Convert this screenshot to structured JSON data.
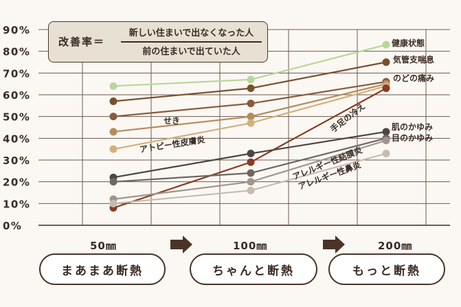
{
  "formula": {
    "label": "改善率＝",
    "numerator": "新しい住まいで出なくなった人",
    "denominator": "前の住まいで出ていた人"
  },
  "stages": [
    {
      "thickness": "50㎜",
      "label": "まあまあ断熱"
    },
    {
      "thickness": "100㎜",
      "label": "ちゃんと断熱"
    },
    {
      "thickness": "200㎜",
      "label": "もっと断熱"
    }
  ],
  "chart_data": {
    "type": "line",
    "categories": [
      "50㎜",
      "100㎜",
      "200㎜"
    ],
    "y_ticks": [
      "0%",
      "10%",
      "20%",
      "30%",
      "40%",
      "50%",
      "60%",
      "70%",
      "80%",
      "90%"
    ],
    "ylim": [
      0,
      90
    ],
    "grid": true,
    "series": [
      {
        "name": "健康状態",
        "values": [
          64,
          67,
          83
        ],
        "color": "#b9d69a"
      },
      {
        "name": "気管支喘息",
        "values": [
          57,
          63,
          75
        ],
        "color": "#7a4f2e"
      },
      {
        "name": "のどの痛み",
        "values": [
          50,
          56,
          66
        ],
        "color": "#8a5a3c"
      },
      {
        "name": "せき",
        "values": [
          43,
          50,
          65
        ],
        "color": "#b88b5e"
      },
      {
        "name": "アトピー性皮膚炎",
        "values": [
          35,
          47,
          64
        ],
        "color": "#d1b07c"
      },
      {
        "name": "手足の冷え",
        "values": [
          8,
          29,
          63
        ],
        "color": "#8b3a22"
      },
      {
        "name": "肌のかゆみ",
        "values": [
          22,
          33,
          43
        ],
        "color": "#4d4540"
      },
      {
        "name": "目のかゆみ",
        "values": [
          20,
          24,
          40
        ],
        "color": "#6e6560"
      },
      {
        "name": "アレルギー性結膜炎",
        "values": [
          12,
          20,
          39
        ],
        "color": "#a0958c"
      },
      {
        "name": "アレルギー性鼻炎",
        "values": [
          10,
          16,
          33
        ],
        "color": "#c7bcad"
      }
    ]
  }
}
